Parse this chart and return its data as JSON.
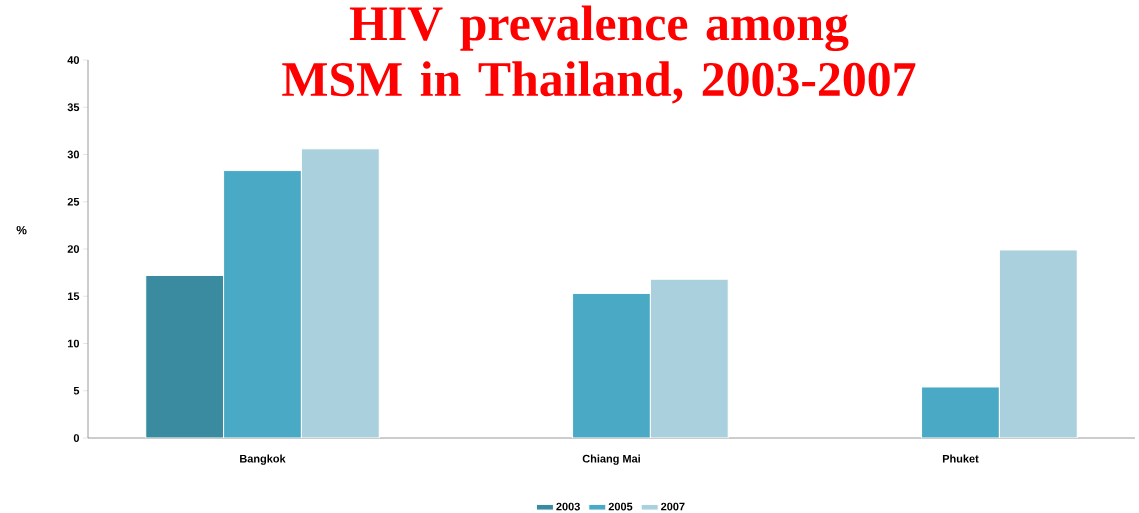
{
  "chart_data": {
    "type": "bar",
    "title": "HIV prevalence among MSM in Thailand, 2003-2007",
    "ylabel": "%",
    "categories": [
      "Bangkok",
      "Chiang Mai",
      "Phuket"
    ],
    "series": [
      {
        "name": "2003",
        "color": "#3a8ba0",
        "values": [
          17.2,
          null,
          null
        ]
      },
      {
        "name": "2005",
        "color": "#4aaac5",
        "values": [
          28.3,
          15.3,
          5.4
        ]
      },
      {
        "name": "2007",
        "color": "#a9d0dc",
        "values": [
          30.6,
          16.8,
          19.9
        ]
      }
    ],
    "ylim": [
      0,
      40
    ],
    "yticks": [
      0,
      5,
      10,
      15,
      20,
      25,
      30,
      35,
      40
    ],
    "grid": false,
    "legend": "bottom"
  }
}
